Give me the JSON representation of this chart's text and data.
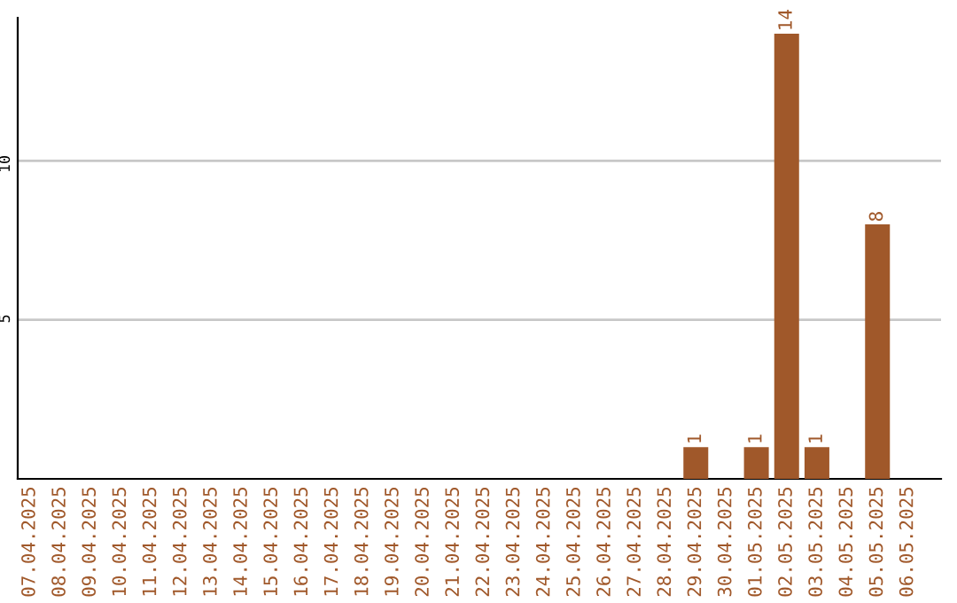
{
  "chart_data": {
    "type": "bar",
    "categories": [
      "07.04.2025",
      "08.04.2025",
      "09.04.2025",
      "10.04.2025",
      "11.04.2025",
      "12.04.2025",
      "13.04.2025",
      "14.04.2025",
      "15.04.2025",
      "16.04.2025",
      "17.04.2025",
      "18.04.2025",
      "19.04.2025",
      "20.04.2025",
      "21.04.2025",
      "22.04.2025",
      "23.04.2025",
      "24.04.2025",
      "25.04.2025",
      "26.04.2025",
      "27.04.2025",
      "28.04.2025",
      "29.04.2025",
      "30.04.2025",
      "01.05.2025",
      "02.05.2025",
      "03.05.2025",
      "04.05.2025",
      "05.05.2025",
      "06.05.2025"
    ],
    "values": [
      0,
      0,
      0,
      0,
      0,
      0,
      0,
      0,
      0,
      0,
      0,
      0,
      0,
      0,
      0,
      0,
      0,
      0,
      0,
      0,
      0,
      0,
      1,
      0,
      1,
      14,
      1,
      0,
      8,
      0
    ],
    "value_labels": [
      null,
      null,
      null,
      null,
      null,
      null,
      null,
      null,
      null,
      null,
      null,
      null,
      null,
      null,
      null,
      null,
      null,
      null,
      null,
      null,
      null,
      null,
      "1",
      null,
      "1",
      "14",
      "1",
      null,
      "8",
      null
    ],
    "color": "#a0582a",
    "ylim": [
      0,
      14.5
    ],
    "yticks": [
      5,
      10
    ],
    "grid": "y"
  }
}
